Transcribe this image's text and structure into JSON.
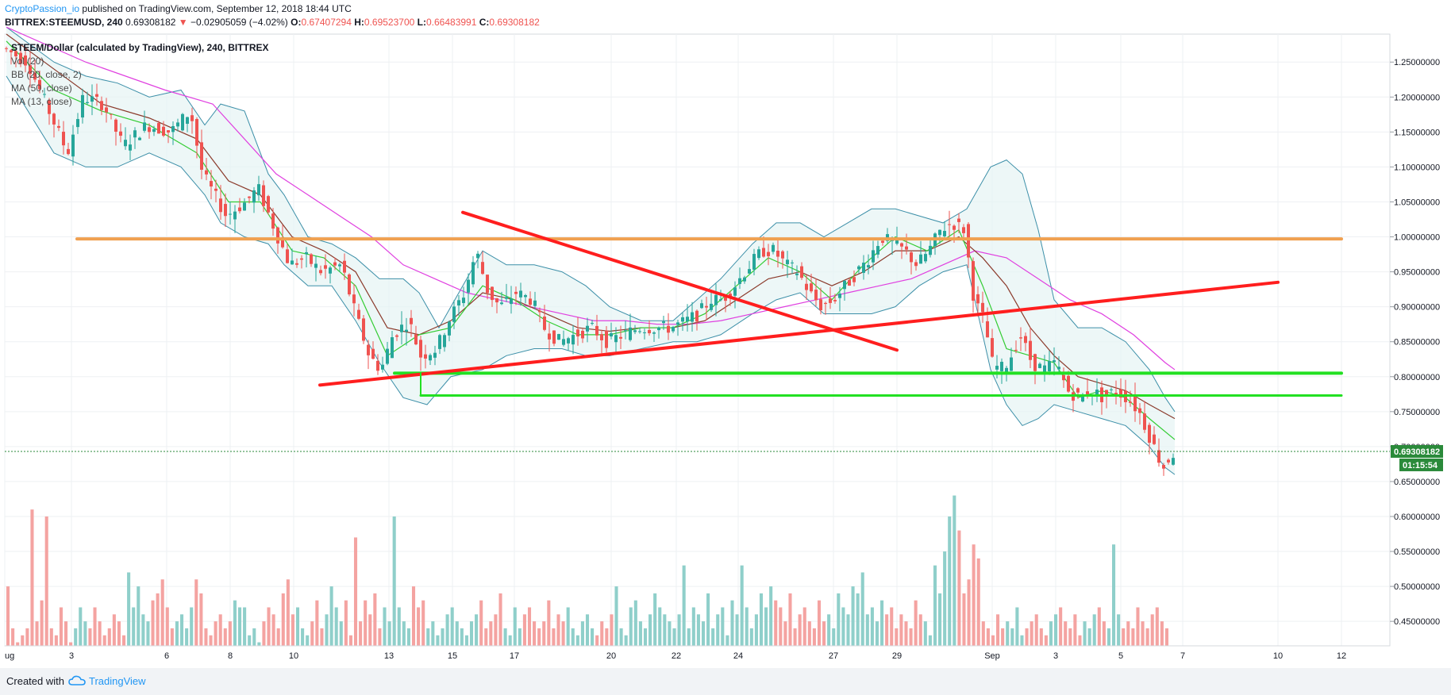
{
  "header": {
    "author": "CryptoPassion_io",
    "published": "published on TradingView.com, September 12, 2018 18:44 UTC"
  },
  "symbol": {
    "ticker": "BITTREX:STEEMUSD, 240",
    "last": "0.69308182",
    "change": "−0.02905059 (−4.02%)",
    "open_label": "O:",
    "open": "0.67407294",
    "high_label": "H:",
    "high": "0.69523700",
    "low_label": "L:",
    "low": "0.66483991",
    "close_label": "C:",
    "close": "0.69308182"
  },
  "legend": {
    "title": "STEEM/Dollar (calculated by TradingView), 240, BITTREX",
    "vol": "Vol (20)",
    "bb": "BB (20, close, 2)",
    "ma50": "MA (50, close)",
    "ma13": "MA (13, close)"
  },
  "footer": {
    "created": "Created with",
    "brand": "TradingView"
  },
  "colors": {
    "up": "#26a69a",
    "down": "#ef5350",
    "vol_up": "#8fcfca",
    "vol_down": "#f4a3a1",
    "bb": "#3c8fa8",
    "bb_fill": "#e6f4f3",
    "ma50": "#e040e0",
    "ma13": "#8b3a2b",
    "ma_fast": "#33cc33",
    "trend_red": "#ff1e1e",
    "resistance_orange": "#f0a050",
    "support_green": "#22e022",
    "price_tag": "#2a8a3a"
  },
  "chart_data": {
    "type": "candlestick",
    "interval": "240",
    "y_axis": {
      "ticks": [
        "1.25000000",
        "1.20000000",
        "1.15000000",
        "1.10000000",
        "1.05000000",
        "1.00000000",
        "0.95000000",
        "0.90000000",
        "0.85000000",
        "0.80000000",
        "0.75000000",
        "0.70000000",
        "0.65000000",
        "0.60000000",
        "0.55000000",
        "0.50000000",
        "0.45000000"
      ],
      "range": [
        0.415,
        1.29
      ]
    },
    "x_axis": {
      "labels": [
        "ug",
        "3",
        "6",
        "8",
        "10",
        "13",
        "15",
        "17",
        "20",
        "22",
        "24",
        "27",
        "29",
        "Sep",
        "3",
        "5",
        "7",
        "10",
        "12"
      ]
    },
    "last_price_tag": "0.69308182",
    "countdown_tag": "01:15:54",
    "drawn_lines": {
      "resistance": 0.997,
      "support_upper": 0.805,
      "support_lower": 0.773,
      "ascending_trendline": [
        [
          0.788,
          0.935
        ]
      ],
      "descending_trendline": [
        [
          1.035,
          0.838
        ]
      ]
    },
    "price_path": [
      [
        0,
        1.27
      ],
      [
        30,
        1.25
      ],
      [
        45,
        1.21
      ],
      [
        80,
        1.12
      ],
      [
        100,
        1.2
      ],
      [
        125,
        1.19
      ],
      [
        150,
        1.13
      ],
      [
        180,
        1.16
      ],
      [
        210,
        1.15
      ],
      [
        235,
        1.18
      ],
      [
        250,
        1.09
      ],
      [
        280,
        1.03
      ],
      [
        305,
        1.05
      ],
      [
        320,
        1.07
      ],
      [
        345,
        1.0
      ],
      [
        360,
        0.96
      ],
      [
        380,
        0.97
      ],
      [
        400,
        0.95
      ],
      [
        425,
        0.96
      ],
      [
        440,
        0.9
      ],
      [
        460,
        0.83
      ],
      [
        475,
        0.81
      ],
      [
        490,
        0.86
      ],
      [
        510,
        0.88
      ],
      [
        525,
        0.83
      ],
      [
        545,
        0.84
      ],
      [
        560,
        0.88
      ],
      [
        580,
        0.92
      ],
      [
        595,
        0.98
      ],
      [
        610,
        0.92
      ],
      [
        625,
        0.9
      ],
      [
        645,
        0.92
      ],
      [
        665,
        0.91
      ],
      [
        680,
        0.87
      ],
      [
        700,
        0.85
      ],
      [
        720,
        0.86
      ],
      [
        740,
        0.87
      ],
      [
        760,
        0.85
      ],
      [
        780,
        0.86
      ],
      [
        800,
        0.87
      ],
      [
        820,
        0.87
      ],
      [
        840,
        0.87
      ],
      [
        860,
        0.88
      ],
      [
        875,
        0.89
      ],
      [
        890,
        0.91
      ],
      [
        905,
        0.91
      ],
      [
        920,
        0.93
      ],
      [
        940,
        0.96
      ],
      [
        955,
        0.98
      ],
      [
        970,
        0.98
      ],
      [
        985,
        0.96
      ],
      [
        1000,
        0.95
      ],
      [
        1015,
        0.92
      ],
      [
        1030,
        0.9
      ],
      [
        1045,
        0.91
      ],
      [
        1060,
        0.93
      ],
      [
        1075,
        0.95
      ],
      [
        1090,
        0.97
      ],
      [
        1105,
        1.0
      ],
      [
        1120,
        0.99
      ],
      [
        1135,
        0.98
      ],
      [
        1150,
        0.96
      ],
      [
        1165,
        0.98
      ],
      [
        1180,
        1.01
      ],
      [
        1195,
        1.02
      ],
      [
        1210,
        1.01
      ],
      [
        1222,
        0.91
      ],
      [
        1235,
        0.88
      ],
      [
        1245,
        0.82
      ],
      [
        1255,
        0.81
      ],
      [
        1265,
        0.82
      ],
      [
        1280,
        0.86
      ],
      [
        1295,
        0.82
      ],
      [
        1310,
        0.81
      ],
      [
        1325,
        0.82
      ],
      [
        1340,
        0.78
      ],
      [
        1355,
        0.77
      ],
      [
        1370,
        0.78
      ],
      [
        1385,
        0.77
      ],
      [
        1400,
        0.78
      ],
      [
        1415,
        0.77
      ],
      [
        1430,
        0.75
      ],
      [
        1445,
        0.71
      ],
      [
        1460,
        0.67
      ],
      [
        1472,
        0.69
      ]
    ],
    "bb": {
      "upper": [
        [
          0,
          1.3
        ],
        [
          60,
          1.25
        ],
        [
          100,
          1.23
        ],
        [
          140,
          1.22
        ],
        [
          180,
          1.2
        ],
        [
          220,
          1.21
        ],
        [
          250,
          1.16
        ],
        [
          270,
          1.19
        ],
        [
          300,
          1.18
        ],
        [
          330,
          1.09
        ],
        [
          350,
          1.06
        ],
        [
          380,
          1.0
        ],
        [
          410,
          0.99
        ],
        [
          440,
          0.97
        ],
        [
          470,
          0.94
        ],
        [
          500,
          0.94
        ],
        [
          520,
          0.92
        ],
        [
          545,
          0.87
        ],
        [
          565,
          0.91
        ],
        [
          600,
          0.98
        ],
        [
          630,
          0.96
        ],
        [
          665,
          0.96
        ],
        [
          700,
          0.95
        ],
        [
          730,
          0.93
        ],
        [
          760,
          0.9
        ],
        [
          800,
          0.88
        ],
        [
          840,
          0.88
        ],
        [
          870,
          0.91
        ],
        [
          900,
          0.94
        ],
        [
          940,
          0.99
        ],
        [
          970,
          1.02
        ],
        [
          1000,
          1.02
        ],
        [
          1030,
          1.0
        ],
        [
          1060,
          1.02
        ],
        [
          1090,
          1.04
        ],
        [
          1120,
          1.04
        ],
        [
          1150,
          1.03
        ],
        [
          1180,
          1.02
        ],
        [
          1210,
          1.04
        ],
        [
          1240,
          1.1
        ],
        [
          1260,
          1.11
        ],
        [
          1280,
          1.09
        ],
        [
          1300,
          1.01
        ],
        [
          1320,
          0.91
        ],
        [
          1350,
          0.87
        ],
        [
          1380,
          0.87
        ],
        [
          1410,
          0.85
        ],
        [
          1440,
          0.81
        ],
        [
          1460,
          0.77
        ],
        [
          1472,
          0.75
        ]
      ],
      "lower": [
        [
          0,
          1.23
        ],
        [
          60,
          1.12
        ],
        [
          100,
          1.1
        ],
        [
          140,
          1.1
        ],
        [
          180,
          1.12
        ],
        [
          220,
          1.1
        ],
        [
          250,
          1.06
        ],
        [
          270,
          1.02
        ],
        [
          300,
          1.0
        ],
        [
          330,
          0.99
        ],
        [
          350,
          0.96
        ],
        [
          380,
          0.93
        ],
        [
          410,
          0.93
        ],
        [
          440,
          0.88
        ],
        [
          470,
          0.82
        ],
        [
          500,
          0.77
        ],
        [
          530,
          0.76
        ],
        [
          560,
          0.8
        ],
        [
          600,
          0.81
        ],
        [
          630,
          0.83
        ],
        [
          665,
          0.84
        ],
        [
          700,
          0.84
        ],
        [
          730,
          0.83
        ],
        [
          760,
          0.83
        ],
        [
          800,
          0.84
        ],
        [
          840,
          0.85
        ],
        [
          870,
          0.85
        ],
        [
          900,
          0.86
        ],
        [
          940,
          0.89
        ],
        [
          970,
          0.91
        ],
        [
          1000,
          0.92
        ],
        [
          1030,
          0.89
        ],
        [
          1060,
          0.89
        ],
        [
          1090,
          0.89
        ],
        [
          1120,
          0.9
        ],
        [
          1150,
          0.93
        ],
        [
          1180,
          0.95
        ],
        [
          1210,
          0.96
        ],
        [
          1240,
          0.81
        ],
        [
          1260,
          0.76
        ],
        [
          1280,
          0.73
        ],
        [
          1300,
          0.74
        ],
        [
          1320,
          0.76
        ],
        [
          1350,
          0.75
        ],
        [
          1380,
          0.74
        ],
        [
          1410,
          0.73
        ],
        [
          1440,
          0.7
        ],
        [
          1460,
          0.67
        ],
        [
          1472,
          0.66
        ]
      ]
    },
    "ma50": [
      [
        0,
        1.3
      ],
      [
        100,
        1.25
      ],
      [
        200,
        1.21
      ],
      [
        260,
        1.19
      ],
      [
        300,
        1.14
      ],
      [
        340,
        1.09
      ],
      [
        380,
        1.06
      ],
      [
        420,
        1.03
      ],
      [
        460,
        1.0
      ],
      [
        500,
        0.96
      ],
      [
        540,
        0.94
      ],
      [
        580,
        0.92
      ],
      [
        620,
        0.91
      ],
      [
        660,
        0.9
      ],
      [
        700,
        0.89
      ],
      [
        740,
        0.88
      ],
      [
        780,
        0.88
      ],
      [
        820,
        0.875
      ],
      [
        860,
        0.875
      ],
      [
        900,
        0.88
      ],
      [
        940,
        0.89
      ],
      [
        980,
        0.9
      ],
      [
        1020,
        0.91
      ],
      [
        1060,
        0.92
      ],
      [
        1100,
        0.93
      ],
      [
        1140,
        0.94
      ],
      [
        1180,
        0.96
      ],
      [
        1220,
        0.98
      ],
      [
        1260,
        0.97
      ],
      [
        1300,
        0.94
      ],
      [
        1340,
        0.91
      ],
      [
        1380,
        0.89
      ],
      [
        1420,
        0.86
      ],
      [
        1460,
        0.82
      ],
      [
        1472,
        0.81
      ]
    ],
    "ma13": [
      [
        0,
        1.29
      ],
      [
        60,
        1.24
      ],
      [
        120,
        1.19
      ],
      [
        180,
        1.17
      ],
      [
        240,
        1.14
      ],
      [
        280,
        1.08
      ],
      [
        320,
        1.06
      ],
      [
        360,
        1.0
      ],
      [
        400,
        0.98
      ],
      [
        440,
        0.95
      ],
      [
        480,
        0.87
      ],
      [
        520,
        0.86
      ],
      [
        560,
        0.88
      ],
      [
        600,
        0.92
      ],
      [
        640,
        0.91
      ],
      [
        680,
        0.89
      ],
      [
        720,
        0.87
      ],
      [
        760,
        0.865
      ],
      [
        800,
        0.87
      ],
      [
        840,
        0.87
      ],
      [
        880,
        0.88
      ],
      [
        920,
        0.91
      ],
      [
        960,
        0.94
      ],
      [
        1000,
        0.95
      ],
      [
        1040,
        0.93
      ],
      [
        1080,
        0.95
      ],
      [
        1120,
        0.98
      ],
      [
        1160,
        0.98
      ],
      [
        1200,
        1.0
      ],
      [
        1230,
        0.97
      ],
      [
        1260,
        0.93
      ],
      [
        1290,
        0.87
      ],
      [
        1320,
        0.83
      ],
      [
        1350,
        0.8
      ],
      [
        1380,
        0.79
      ],
      [
        1410,
        0.78
      ],
      [
        1440,
        0.76
      ],
      [
        1472,
        0.74
      ]
    ],
    "ma_fast": [
      [
        0,
        1.28
      ],
      [
        60,
        1.21
      ],
      [
        120,
        1.18
      ],
      [
        180,
        1.16
      ],
      [
        240,
        1.12
      ],
      [
        280,
        1.05
      ],
      [
        320,
        1.05
      ],
      [
        360,
        0.98
      ],
      [
        400,
        0.97
      ],
      [
        440,
        0.93
      ],
      [
        480,
        0.83
      ],
      [
        520,
        0.86
      ],
      [
        560,
        0.87
      ],
      [
        600,
        0.93
      ],
      [
        640,
        0.91
      ],
      [
        680,
        0.88
      ],
      [
        720,
        0.86
      ],
      [
        760,
        0.86
      ],
      [
        800,
        0.87
      ],
      [
        840,
        0.87
      ],
      [
        880,
        0.89
      ],
      [
        920,
        0.93
      ],
      [
        960,
        0.97
      ],
      [
        1000,
        0.95
      ],
      [
        1040,
        0.91
      ],
      [
        1080,
        0.96
      ],
      [
        1120,
        1.0
      ],
      [
        1160,
        0.98
      ],
      [
        1200,
        1.01
      ],
      [
        1230,
        0.93
      ],
      [
        1260,
        0.84
      ],
      [
        1290,
        0.83
      ],
      [
        1320,
        0.82
      ],
      [
        1350,
        0.77
      ],
      [
        1380,
        0.78
      ],
      [
        1410,
        0.77
      ],
      [
        1440,
        0.74
      ],
      [
        1472,
        0.71
      ]
    ],
    "volume_profile": [
      0.5,
      0.44,
      0.42,
      0.43,
      0.44,
      0.61,
      0.45,
      0.48,
      0.6,
      0.44,
      0.43,
      0.47,
      0.45,
      0.42,
      0.44,
      0.47,
      0.45,
      0.44,
      0.47,
      0.45,
      0.43,
      0.44,
      0.46,
      0.45,
      0.43,
      0.52,
      0.47,
      0.5,
      0.46,
      0.45,
      0.48,
      0.49,
      0.51,
      0.47,
      0.44,
      0.45,
      0.46,
      0.44,
      0.47,
      0.51,
      0.49,
      0.44,
      0.43,
      0.45,
      0.46,
      0.44,
      0.45,
      0.48,
      0.47,
      0.47,
      0.43,
      0.44,
      0.42,
      0.45,
      0.47,
      0.46,
      0.44,
      0.49,
      0.51,
      0.46,
      0.47,
      0.44,
      0.43,
      0.45,
      0.48,
      0.44,
      0.46,
      0.5,
      0.47,
      0.45,
      0.48,
      0.43,
      0.57,
      0.45,
      0.48,
      0.46,
      0.49,
      0.44,
      0.47,
      0.45,
      0.6,
      0.47,
      0.45,
      0.44,
      0.5,
      0.47,
      0.48,
      0.44,
      0.45,
      0.43,
      0.44,
      0.46,
      0.47,
      0.45,
      0.44,
      0.43,
      0.45,
      0.46,
      0.48,
      0.44,
      0.45,
      0.46,
      0.49,
      0.44,
      0.43,
      0.47,
      0.44,
      0.46,
      0.47,
      0.45,
      0.44,
      0.45,
      0.48,
      0.44,
      0.46,
      0.45,
      0.47,
      0.44,
      0.43,
      0.45,
      0.46,
      0.44,
      0.43,
      0.45,
      0.44,
      0.46,
      0.5,
      0.44,
      0.43,
      0.47,
      0.48,
      0.45,
      0.44,
      0.46,
      0.49,
      0.47,
      0.46,
      0.45,
      0.44,
      0.46,
      0.53,
      0.44,
      0.47,
      0.46,
      0.45,
      0.49,
      0.44,
      0.46,
      0.47,
      0.43,
      0.48,
      0.46,
      0.53,
      0.47,
      0.44,
      0.46,
      0.49,
      0.47,
      0.5,
      0.48,
      0.47,
      0.45,
      0.49,
      0.44,
      0.46,
      0.47,
      0.45,
      0.44,
      0.48,
      0.45,
      0.46,
      0.44,
      0.49,
      0.47,
      0.46,
      0.5,
      0.49,
      0.52,
      0.46,
      0.47,
      0.45,
      0.48,
      0.46,
      0.47,
      0.44,
      0.46,
      0.45,
      0.44,
      0.48,
      0.46,
      0.45,
      0.43,
      0.53,
      0.49,
      0.55,
      0.6,
      0.63,
      0.58,
      0.49,
      0.51,
      0.56,
      0.54,
      0.45,
      0.44,
      0.43,
      0.46,
      0.44,
      0.45,
      0.44,
      0.47,
      0.43,
      0.44,
      0.45,
      0.46,
      0.44,
      0.43,
      0.45,
      0.46,
      0.47,
      0.45,
      0.44,
      0.46,
      0.43,
      0.45,
      0.44,
      0.46,
      0.47,
      0.45,
      0.44,
      0.56,
      0.46,
      0.44,
      0.45,
      0.44,
      0.47,
      0.45,
      0.44,
      0.46,
      0.47,
      0.45,
      0.44
    ]
  }
}
